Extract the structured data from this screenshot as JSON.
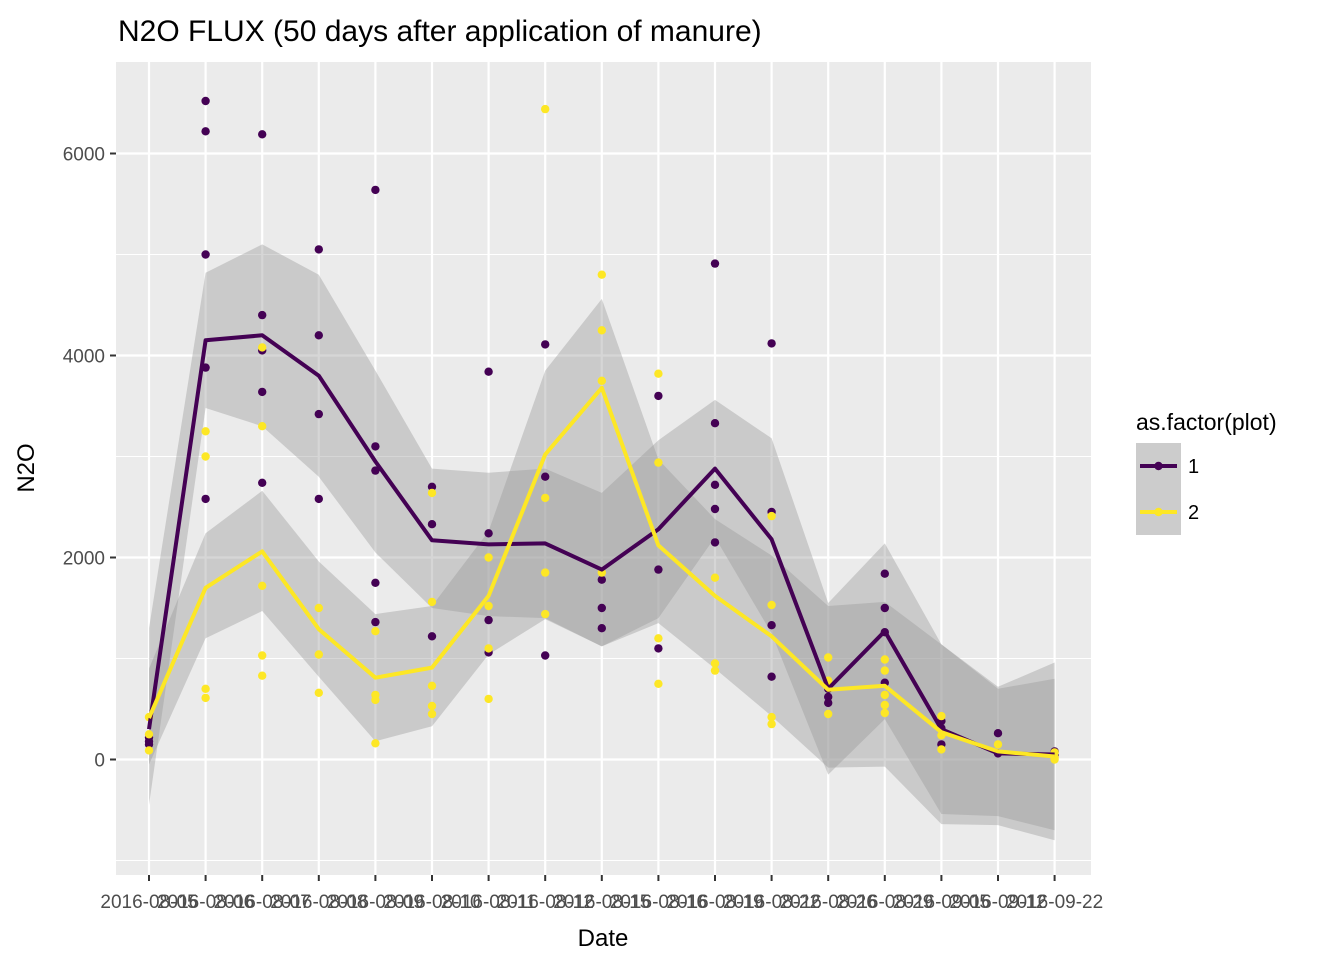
{
  "chart_data": {
    "type": "line",
    "title": "N2O FLUX (50 days after application of manure)",
    "xlabel": "Date",
    "ylabel": "N2O",
    "x": [
      "2016-08-05",
      "2016-08-06",
      "2016-08-07",
      "2016-08-08",
      "2016-08-09",
      "2016-08-10",
      "2016-08-11",
      "2016-08-12",
      "2016-08-15",
      "2016-08-16",
      "2016-08-19",
      "2016-08-22",
      "2016-08-26",
      "2016-08-29",
      "2016-09-05",
      "2016-09-12",
      "2016-09-22"
    ],
    "x_tick_labels": [
      "2016-08-05",
      "2016-08-06",
      "2016-08-07",
      "2016-08-08",
      "2016-08-09",
      "2016-08-10",
      "2016-08-11",
      "2016-08-12",
      "2016-08-15",
      "2016-08-16",
      "2016-08-19",
      "2016-08-22",
      "2016-08-26",
      "2016-08-29",
      "2016-09-05",
      "2016-09-12",
      "2016-09-22"
    ],
    "ylim": [
      -1000,
      6750
    ],
    "y_ticks": [
      0,
      2000,
      4000,
      6000
    ],
    "grid": true,
    "legend": {
      "title": "as.factor(plot)",
      "position": "right"
    },
    "colors": {
      "panel": "#ebebeb",
      "grid": "#ffffff",
      "band": "#999999",
      "legend_key": "#cccccc"
    },
    "series": [
      {
        "name": "1",
        "color": "#440154",
        "mean": [
          300,
          4150,
          4200,
          3800,
          2950,
          2170,
          2130,
          2140,
          1880,
          2280,
          2880,
          2180,
          700,
          1270,
          300,
          60,
          50
        ],
        "lower": [
          -450,
          3480,
          3300,
          2800,
          2050,
          1500,
          1420,
          1400,
          1120,
          1400,
          2200,
          1250,
          -150,
          400,
          -540,
          -560,
          -700
        ],
        "upper": [
          1300,
          4820,
          5100,
          4800,
          3850,
          2880,
          2840,
          2880,
          2640,
          3160,
          3560,
          3180,
          1550,
          2140,
          1140,
          700,
          800
        ],
        "points": [
          [
            0,
            150
          ],
          [
            0,
            220
          ],
          [
            0,
            180
          ],
          [
            1,
            6520
          ],
          [
            1,
            6220
          ],
          [
            1,
            5000
          ],
          [
            1,
            3880
          ],
          [
            1,
            2580
          ],
          [
            2,
            6190
          ],
          [
            2,
            4400
          ],
          [
            2,
            4050
          ],
          [
            2,
            3640
          ],
          [
            2,
            2740
          ],
          [
            3,
            5050
          ],
          [
            3,
            4200
          ],
          [
            3,
            3420
          ],
          [
            3,
            2580
          ],
          [
            4,
            5640
          ],
          [
            4,
            3100
          ],
          [
            4,
            2860
          ],
          [
            4,
            1750
          ],
          [
            4,
            1360
          ],
          [
            5,
            2700
          ],
          [
            5,
            2330
          ],
          [
            5,
            1220
          ],
          [
            6,
            3840
          ],
          [
            6,
            2240
          ],
          [
            6,
            1380
          ],
          [
            6,
            1060
          ],
          [
            7,
            4110
          ],
          [
            7,
            2800
          ],
          [
            7,
            1030
          ],
          [
            8,
            1780
          ],
          [
            8,
            1500
          ],
          [
            8,
            1300
          ],
          [
            9,
            3600
          ],
          [
            9,
            1880
          ],
          [
            9,
            1100
          ],
          [
            10,
            4910
          ],
          [
            10,
            3330
          ],
          [
            10,
            2720
          ],
          [
            10,
            2480
          ],
          [
            10,
            2150
          ],
          [
            11,
            4120
          ],
          [
            11,
            2450
          ],
          [
            11,
            1330
          ],
          [
            11,
            820
          ],
          [
            12,
            700
          ],
          [
            12,
            620
          ],
          [
            12,
            560
          ],
          [
            13,
            1840
          ],
          [
            13,
            1500
          ],
          [
            13,
            1260
          ],
          [
            13,
            760
          ],
          [
            14,
            380
          ],
          [
            14,
            310
          ],
          [
            14,
            150
          ],
          [
            15,
            260
          ],
          [
            15,
            60
          ],
          [
            16,
            80
          ],
          [
            16,
            40
          ]
        ]
      },
      {
        "name": "2",
        "color": "#fde725",
        "mean": [
          410,
          1700,
          2060,
          1290,
          810,
          910,
          1620,
          3020,
          3680,
          2120,
          1620,
          1220,
          690,
          730,
          270,
          80,
          30
        ],
        "lower": [
          -50,
          1200,
          1470,
          820,
          180,
          330,
          1040,
          1390,
          1120,
          1350,
          900,
          430,
          -80,
          -70,
          -640,
          -650,
          -800
        ],
        "upper": [
          900,
          2240,
          2660,
          1960,
          1440,
          1520,
          2260,
          3850,
          4560,
          2970,
          2380,
          2020,
          1520,
          1560,
          1140,
          720,
          960
        ],
        "points": [
          [
            0,
            420
          ],
          [
            0,
            250
          ],
          [
            0,
            90
          ],
          [
            1,
            3250
          ],
          [
            1,
            3000
          ],
          [
            1,
            700
          ],
          [
            1,
            610
          ],
          [
            2,
            4080
          ],
          [
            2,
            3300
          ],
          [
            2,
            1720
          ],
          [
            2,
            1030
          ],
          [
            2,
            830
          ],
          [
            3,
            1500
          ],
          [
            3,
            1040
          ],
          [
            3,
            660
          ],
          [
            4,
            1270
          ],
          [
            4,
            640
          ],
          [
            4,
            590
          ],
          [
            4,
            160
          ],
          [
            5,
            2640
          ],
          [
            5,
            1560
          ],
          [
            5,
            730
          ],
          [
            5,
            530
          ],
          [
            5,
            450
          ],
          [
            6,
            2000
          ],
          [
            6,
            1520
          ],
          [
            6,
            1100
          ],
          [
            6,
            600
          ],
          [
            7,
            6440
          ],
          [
            7,
            2590
          ],
          [
            7,
            1850
          ],
          [
            7,
            1440
          ],
          [
            8,
            4800
          ],
          [
            8,
            4250
          ],
          [
            8,
            3750
          ],
          [
            8,
            1850
          ],
          [
            9,
            3820
          ],
          [
            9,
            2940
          ],
          [
            9,
            1200
          ],
          [
            9,
            750
          ],
          [
            10,
            1800
          ],
          [
            10,
            950
          ],
          [
            10,
            880
          ],
          [
            11,
            2410
          ],
          [
            11,
            1530
          ],
          [
            11,
            420
          ],
          [
            11,
            350
          ],
          [
            12,
            1010
          ],
          [
            12,
            780
          ],
          [
            12,
            450
          ],
          [
            13,
            990
          ],
          [
            13,
            880
          ],
          [
            13,
            640
          ],
          [
            13,
            540
          ],
          [
            13,
            460
          ],
          [
            14,
            430
          ],
          [
            14,
            240
          ],
          [
            14,
            100
          ],
          [
            15,
            150
          ],
          [
            16,
            70
          ],
          [
            16,
            20
          ],
          [
            16,
            0
          ]
        ]
      }
    ]
  }
}
